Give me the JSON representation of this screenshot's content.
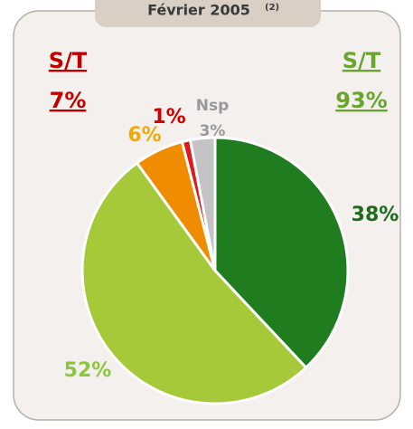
{
  "chart_data": {
    "type": "pie",
    "title": "Février 2005",
    "title_note": "(2)",
    "categories": [
      null,
      null,
      null,
      null,
      "Nsp"
    ],
    "values": [
      38,
      52,
      6,
      1,
      3
    ],
    "value_labels": [
      "38%",
      "52%",
      "6%",
      "1%",
      "3%"
    ],
    "colors": [
      "#1f7d1f",
      "#a6c93a",
      "#f08c00",
      "#e01a1a",
      "#c4c4c4"
    ],
    "label_colors": [
      "#1e6b1e",
      "#8cc63f",
      "#f5a800",
      "#d40000",
      "#999999"
    ],
    "annotations": [
      {
        "label": "S/T",
        "text": "7%",
        "color": "#c00000"
      },
      {
        "label": "S/T",
        "text": "93%",
        "color": "#6aa62e"
      }
    ]
  }
}
